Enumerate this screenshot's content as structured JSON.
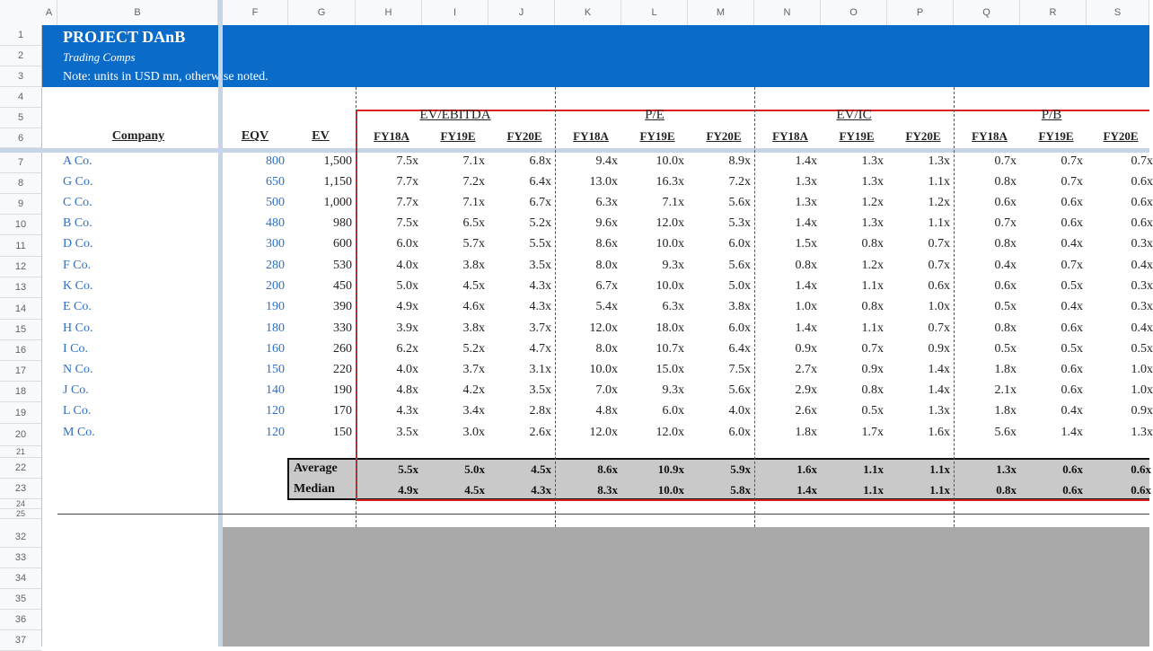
{
  "sheet": {
    "columns": [
      "A",
      "B",
      "F",
      "G",
      "H",
      "I",
      "J",
      "K",
      "L",
      "M",
      "N",
      "O",
      "P",
      "Q",
      "R",
      "S"
    ],
    "rows_top": [
      "1",
      "2",
      "3",
      "4",
      "5",
      "6",
      "7",
      "8",
      "9",
      "10",
      "11",
      "12",
      "13",
      "14",
      "15",
      "16",
      "17",
      "18",
      "19",
      "20",
      "21",
      "22",
      "23",
      "24",
      "25"
    ],
    "rows_bottom": [
      "32",
      "33",
      "34",
      "35",
      "36",
      "37"
    ]
  },
  "banner": {
    "title": "PROJECT DAnB",
    "subtitle": "Trading Comps",
    "note": "Note: units in USD mn, otherwise noted."
  },
  "headers": {
    "company": "Company",
    "eqv": "EQV",
    "ev": "EV",
    "groups": [
      "EV/EBITDA",
      "P/E",
      "EV/IC",
      "P/B"
    ],
    "years": [
      "FY18A",
      "FY19E",
      "FY20E"
    ]
  },
  "companies": [
    {
      "name": "A Co.",
      "eqv": "800",
      "ev": "1,500",
      "vals": [
        "7.5x",
        "7.1x",
        "6.8x",
        "9.4x",
        "10.0x",
        "8.9x",
        "1.4x",
        "1.3x",
        "1.3x",
        "0.7x",
        "0.7x",
        "0.7x"
      ]
    },
    {
      "name": "G Co.",
      "eqv": "650",
      "ev": "1,150",
      "vals": [
        "7.7x",
        "7.2x",
        "6.4x",
        "13.0x",
        "16.3x",
        "7.2x",
        "1.3x",
        "1.3x",
        "1.1x",
        "0.8x",
        "0.7x",
        "0.6x"
      ]
    },
    {
      "name": "C Co.",
      "eqv": "500",
      "ev": "1,000",
      "vals": [
        "7.7x",
        "7.1x",
        "6.7x",
        "6.3x",
        "7.1x",
        "5.6x",
        "1.3x",
        "1.2x",
        "1.2x",
        "0.6x",
        "0.6x",
        "0.6x"
      ]
    },
    {
      "name": "B Co.",
      "eqv": "480",
      "ev": "980",
      "vals": [
        "7.5x",
        "6.5x",
        "5.2x",
        "9.6x",
        "12.0x",
        "5.3x",
        "1.4x",
        "1.3x",
        "1.1x",
        "0.7x",
        "0.6x",
        "0.6x"
      ]
    },
    {
      "name": "D Co.",
      "eqv": "300",
      "ev": "600",
      "vals": [
        "6.0x",
        "5.7x",
        "5.5x",
        "8.6x",
        "10.0x",
        "6.0x",
        "1.5x",
        "0.8x",
        "0.7x",
        "0.8x",
        "0.4x",
        "0.3x"
      ]
    },
    {
      "name": "F Co.",
      "eqv": "280",
      "ev": "530",
      "vals": [
        "4.0x",
        "3.8x",
        "3.5x",
        "8.0x",
        "9.3x",
        "5.6x",
        "0.8x",
        "1.2x",
        "0.7x",
        "0.4x",
        "0.7x",
        "0.4x"
      ]
    },
    {
      "name": "K Co.",
      "eqv": "200",
      "ev": "450",
      "vals": [
        "5.0x",
        "4.5x",
        "4.3x",
        "6.7x",
        "10.0x",
        "5.0x",
        "1.4x",
        "1.1x",
        "0.6x",
        "0.6x",
        "0.5x",
        "0.3x"
      ]
    },
    {
      "name": "E Co.",
      "eqv": "190",
      "ev": "390",
      "vals": [
        "4.9x",
        "4.6x",
        "4.3x",
        "5.4x",
        "6.3x",
        "3.8x",
        "1.0x",
        "0.8x",
        "1.0x",
        "0.5x",
        "0.4x",
        "0.3x"
      ]
    },
    {
      "name": "H Co.",
      "eqv": "180",
      "ev": "330",
      "vals": [
        "3.9x",
        "3.8x",
        "3.7x",
        "12.0x",
        "18.0x",
        "6.0x",
        "1.4x",
        "1.1x",
        "0.7x",
        "0.8x",
        "0.6x",
        "0.4x"
      ]
    },
    {
      "name": "I Co.",
      "eqv": "160",
      "ev": "260",
      "vals": [
        "6.2x",
        "5.2x",
        "4.7x",
        "8.0x",
        "10.7x",
        "6.4x",
        "0.9x",
        "0.7x",
        "0.9x",
        "0.5x",
        "0.5x",
        "0.5x"
      ]
    },
    {
      "name": "N Co.",
      "eqv": "150",
      "ev": "220",
      "vals": [
        "4.0x",
        "3.7x",
        "3.1x",
        "10.0x",
        "15.0x",
        "7.5x",
        "2.7x",
        "0.9x",
        "1.4x",
        "1.8x",
        "0.6x",
        "1.0x"
      ]
    },
    {
      "name": "J Co.",
      "eqv": "140",
      "ev": "190",
      "vals": [
        "4.8x",
        "4.2x",
        "3.5x",
        "7.0x",
        "9.3x",
        "5.6x",
        "2.9x",
        "0.8x",
        "1.4x",
        "2.1x",
        "0.6x",
        "1.0x"
      ]
    },
    {
      "name": "L Co.",
      "eqv": "120",
      "ev": "170",
      "vals": [
        "4.3x",
        "3.4x",
        "2.8x",
        "4.8x",
        "6.0x",
        "4.0x",
        "2.6x",
        "0.5x",
        "1.3x",
        "1.8x",
        "0.4x",
        "0.9x"
      ]
    },
    {
      "name": "M Co.",
      "eqv": "120",
      "ev": "150",
      "vals": [
        "3.5x",
        "3.0x",
        "2.6x",
        "12.0x",
        "12.0x",
        "6.0x",
        "1.8x",
        "1.7x",
        "1.6x",
        "5.6x",
        "1.4x",
        "1.3x"
      ]
    }
  ],
  "stats": [
    {
      "label": "Average",
      "vals": [
        "5.5x",
        "5.0x",
        "4.5x",
        "8.6x",
        "10.9x",
        "5.9x",
        "1.6x",
        "1.1x",
        "1.1x",
        "1.3x",
        "0.6x",
        "0.6x"
      ]
    },
    {
      "label": "Median",
      "vals": [
        "4.9x",
        "4.5x",
        "4.3x",
        "8.3x",
        "10.0x",
        "5.8x",
        "1.4x",
        "1.1x",
        "1.1x",
        "0.8x",
        "0.6x",
        "0.6x"
      ]
    }
  ]
}
